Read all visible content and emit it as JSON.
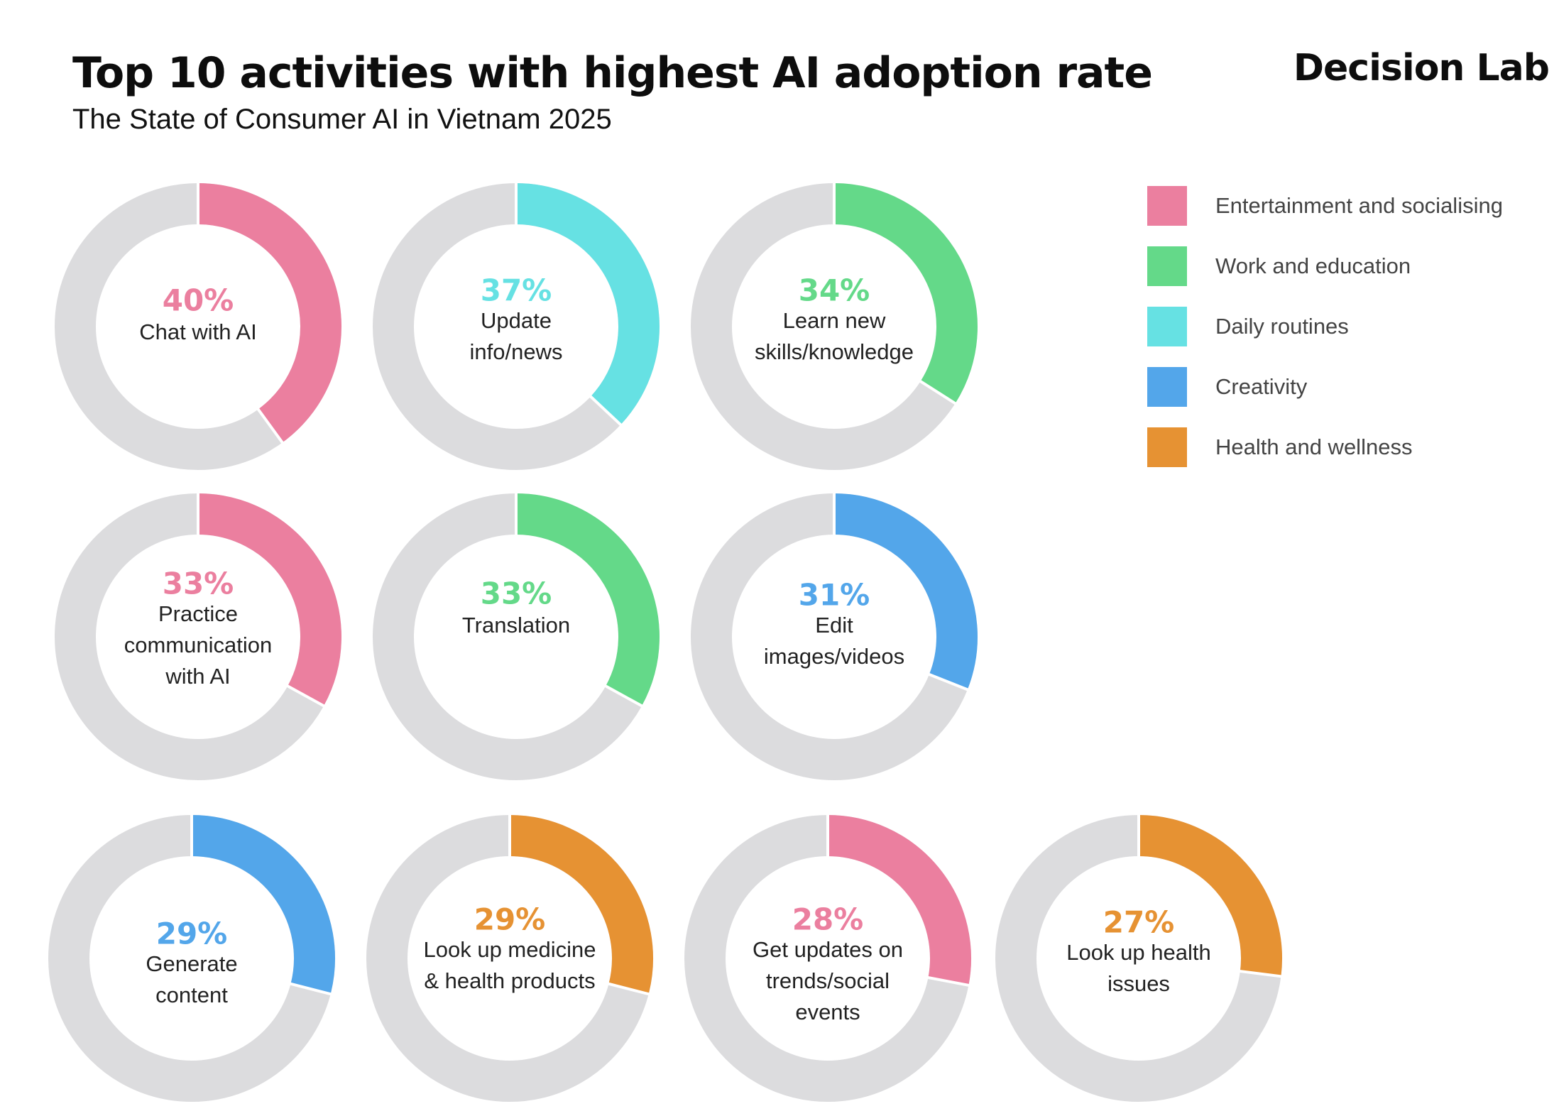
{
  "header": {
    "title": "Top 10 activities with highest AI adoption rate",
    "subtitle": "The State of Consumer AI in Vietnam 2025",
    "brand": "Decision Lab"
  },
  "chart_data": {
    "type": "donut",
    "title": "Top 10 activities with highest AI adoption rate",
    "subtitle": "The State of Consumer AI in Vietnam 2025",
    "unit": "%",
    "legend_position": "top-right",
    "categories": [
      {
        "key": "entertainment",
        "label": "Entertainment and socialising",
        "color": "#EB7F9F"
      },
      {
        "key": "work",
        "label": "Work and education",
        "color": "#64D989"
      },
      {
        "key": "daily",
        "label": "Daily routines",
        "color": "#66E1E3"
      },
      {
        "key": "creativity",
        "label": "Creativity",
        "color": "#53A6EA"
      },
      {
        "key": "health",
        "label": "Health and wellness",
        "color": "#E69233"
      }
    ],
    "items": [
      {
        "label_lines": [
          "Chat with AI"
        ],
        "value": 40,
        "value_label": "40%",
        "category": "entertainment"
      },
      {
        "label_lines": [
          "Update",
          "info/news"
        ],
        "value": 37,
        "value_label": "37%",
        "category": "daily"
      },
      {
        "label_lines": [
          "Learn new",
          "skills/knowledge"
        ],
        "value": 34,
        "value_label": "34%",
        "category": "work"
      },
      {
        "label_lines": [
          "Practice",
          "communication",
          "with AI"
        ],
        "value": 33,
        "value_label": "33%",
        "category": "entertainment"
      },
      {
        "label_lines": [
          "Translation"
        ],
        "value": 33,
        "value_label": "33%",
        "category": "work"
      },
      {
        "label_lines": [
          "Edit",
          "images/videos"
        ],
        "value": 31,
        "value_label": "31%",
        "category": "creativity"
      },
      {
        "label_lines": [
          "Generate",
          "content"
        ],
        "value": 29,
        "value_label": "29%",
        "category": "creativity"
      },
      {
        "label_lines": [
          "Look up medicine",
          "& health products"
        ],
        "value": 29,
        "value_label": "29%",
        "category": "health"
      },
      {
        "label_lines": [
          "Get updates on",
          "trends/social",
          "events"
        ],
        "value": 28,
        "value_label": "28%",
        "category": "entertainment"
      },
      {
        "label_lines": [
          "Look up health",
          "issues"
        ],
        "value": 27,
        "value_label": "27%",
        "category": "health"
      }
    ],
    "track_color": "#DCDCDE"
  }
}
